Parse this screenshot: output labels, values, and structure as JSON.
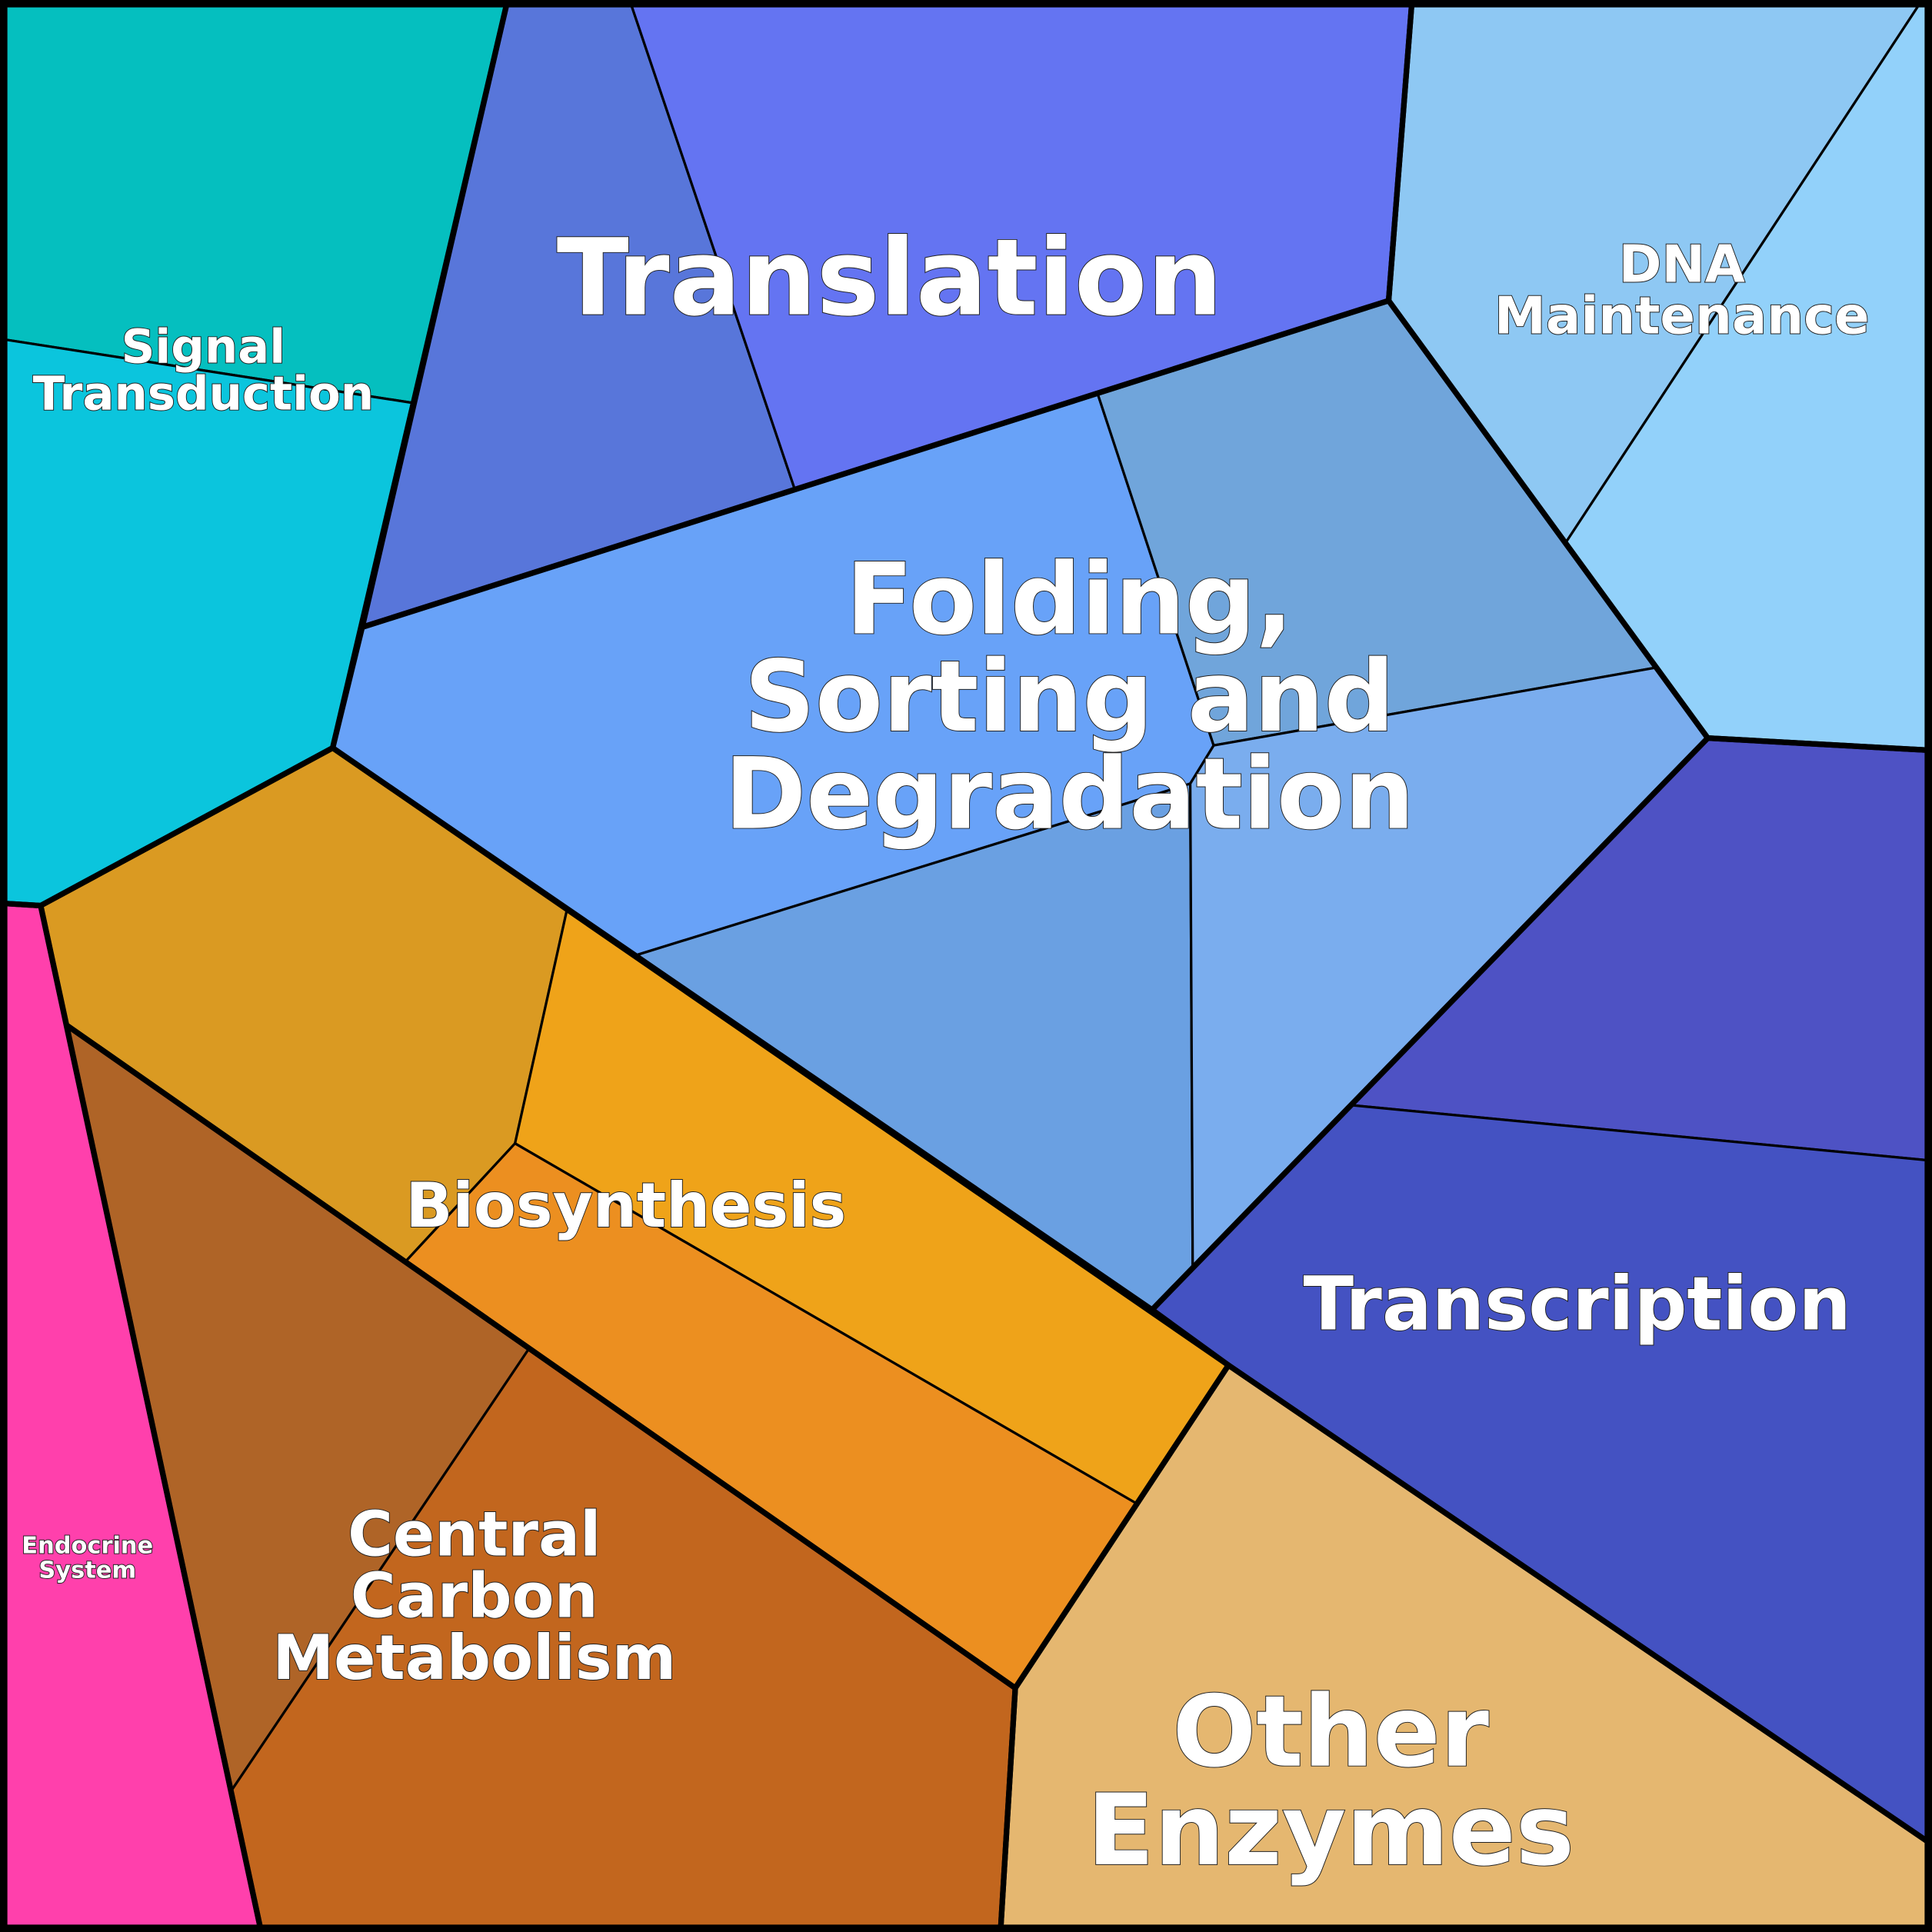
{
  "chart_data": {
    "type": "voronoi-treemap",
    "title": "",
    "regions": [
      {
        "name": "Signal Transduction",
        "label_lines": [
          "Signal",
          "Transduction"
        ],
        "cell_colors": [
          "#05BFBF",
          "#0BC5DD"
        ]
      },
      {
        "name": "Translation",
        "label_lines": [
          "Translation"
        ],
        "cell_colors": [
          "#5876DA",
          "#6474F2"
        ]
      },
      {
        "name": "DNA Maintenance",
        "label_lines": [
          "DNA",
          "Maintenance"
        ],
        "cell_colors": [
          "#8EC8F3",
          "#92D1FA"
        ]
      },
      {
        "name": "Folding, Sorting and Degradation",
        "label_lines": [
          "Folding,",
          "Sorting and",
          "Degradation"
        ],
        "cell_colors": [
          "#68A2F8",
          "#70A5DB",
          "#6AA0E2",
          "#7AADEE"
        ]
      },
      {
        "name": "Transcription",
        "label_lines": [
          "Transcription"
        ],
        "cell_colors": [
          "#4E52C4",
          "#4452C2"
        ]
      },
      {
        "name": "Other Enzymes",
        "label_lines": [
          "Other",
          "Enzymes"
        ],
        "cell_colors": [
          "#E5B770"
        ]
      },
      {
        "name": "Biosynthesis",
        "label_lines": [
          "Biosynthesis"
        ],
        "cell_colors": [
          "#DA9A22",
          "#EFA319",
          "#EC8F20"
        ]
      },
      {
        "name": "Central Carbon Metabolism",
        "label_lines": [
          "Central",
          "Carbon",
          "Metabolism"
        ],
        "cell_colors": [
          "#AF6427",
          "#C2661E"
        ]
      },
      {
        "name": "Endocrine System",
        "label_lines": [
          "Endocrine",
          "System"
        ],
        "cell_colors": [
          "#FF40AC"
        ]
      }
    ]
  }
}
